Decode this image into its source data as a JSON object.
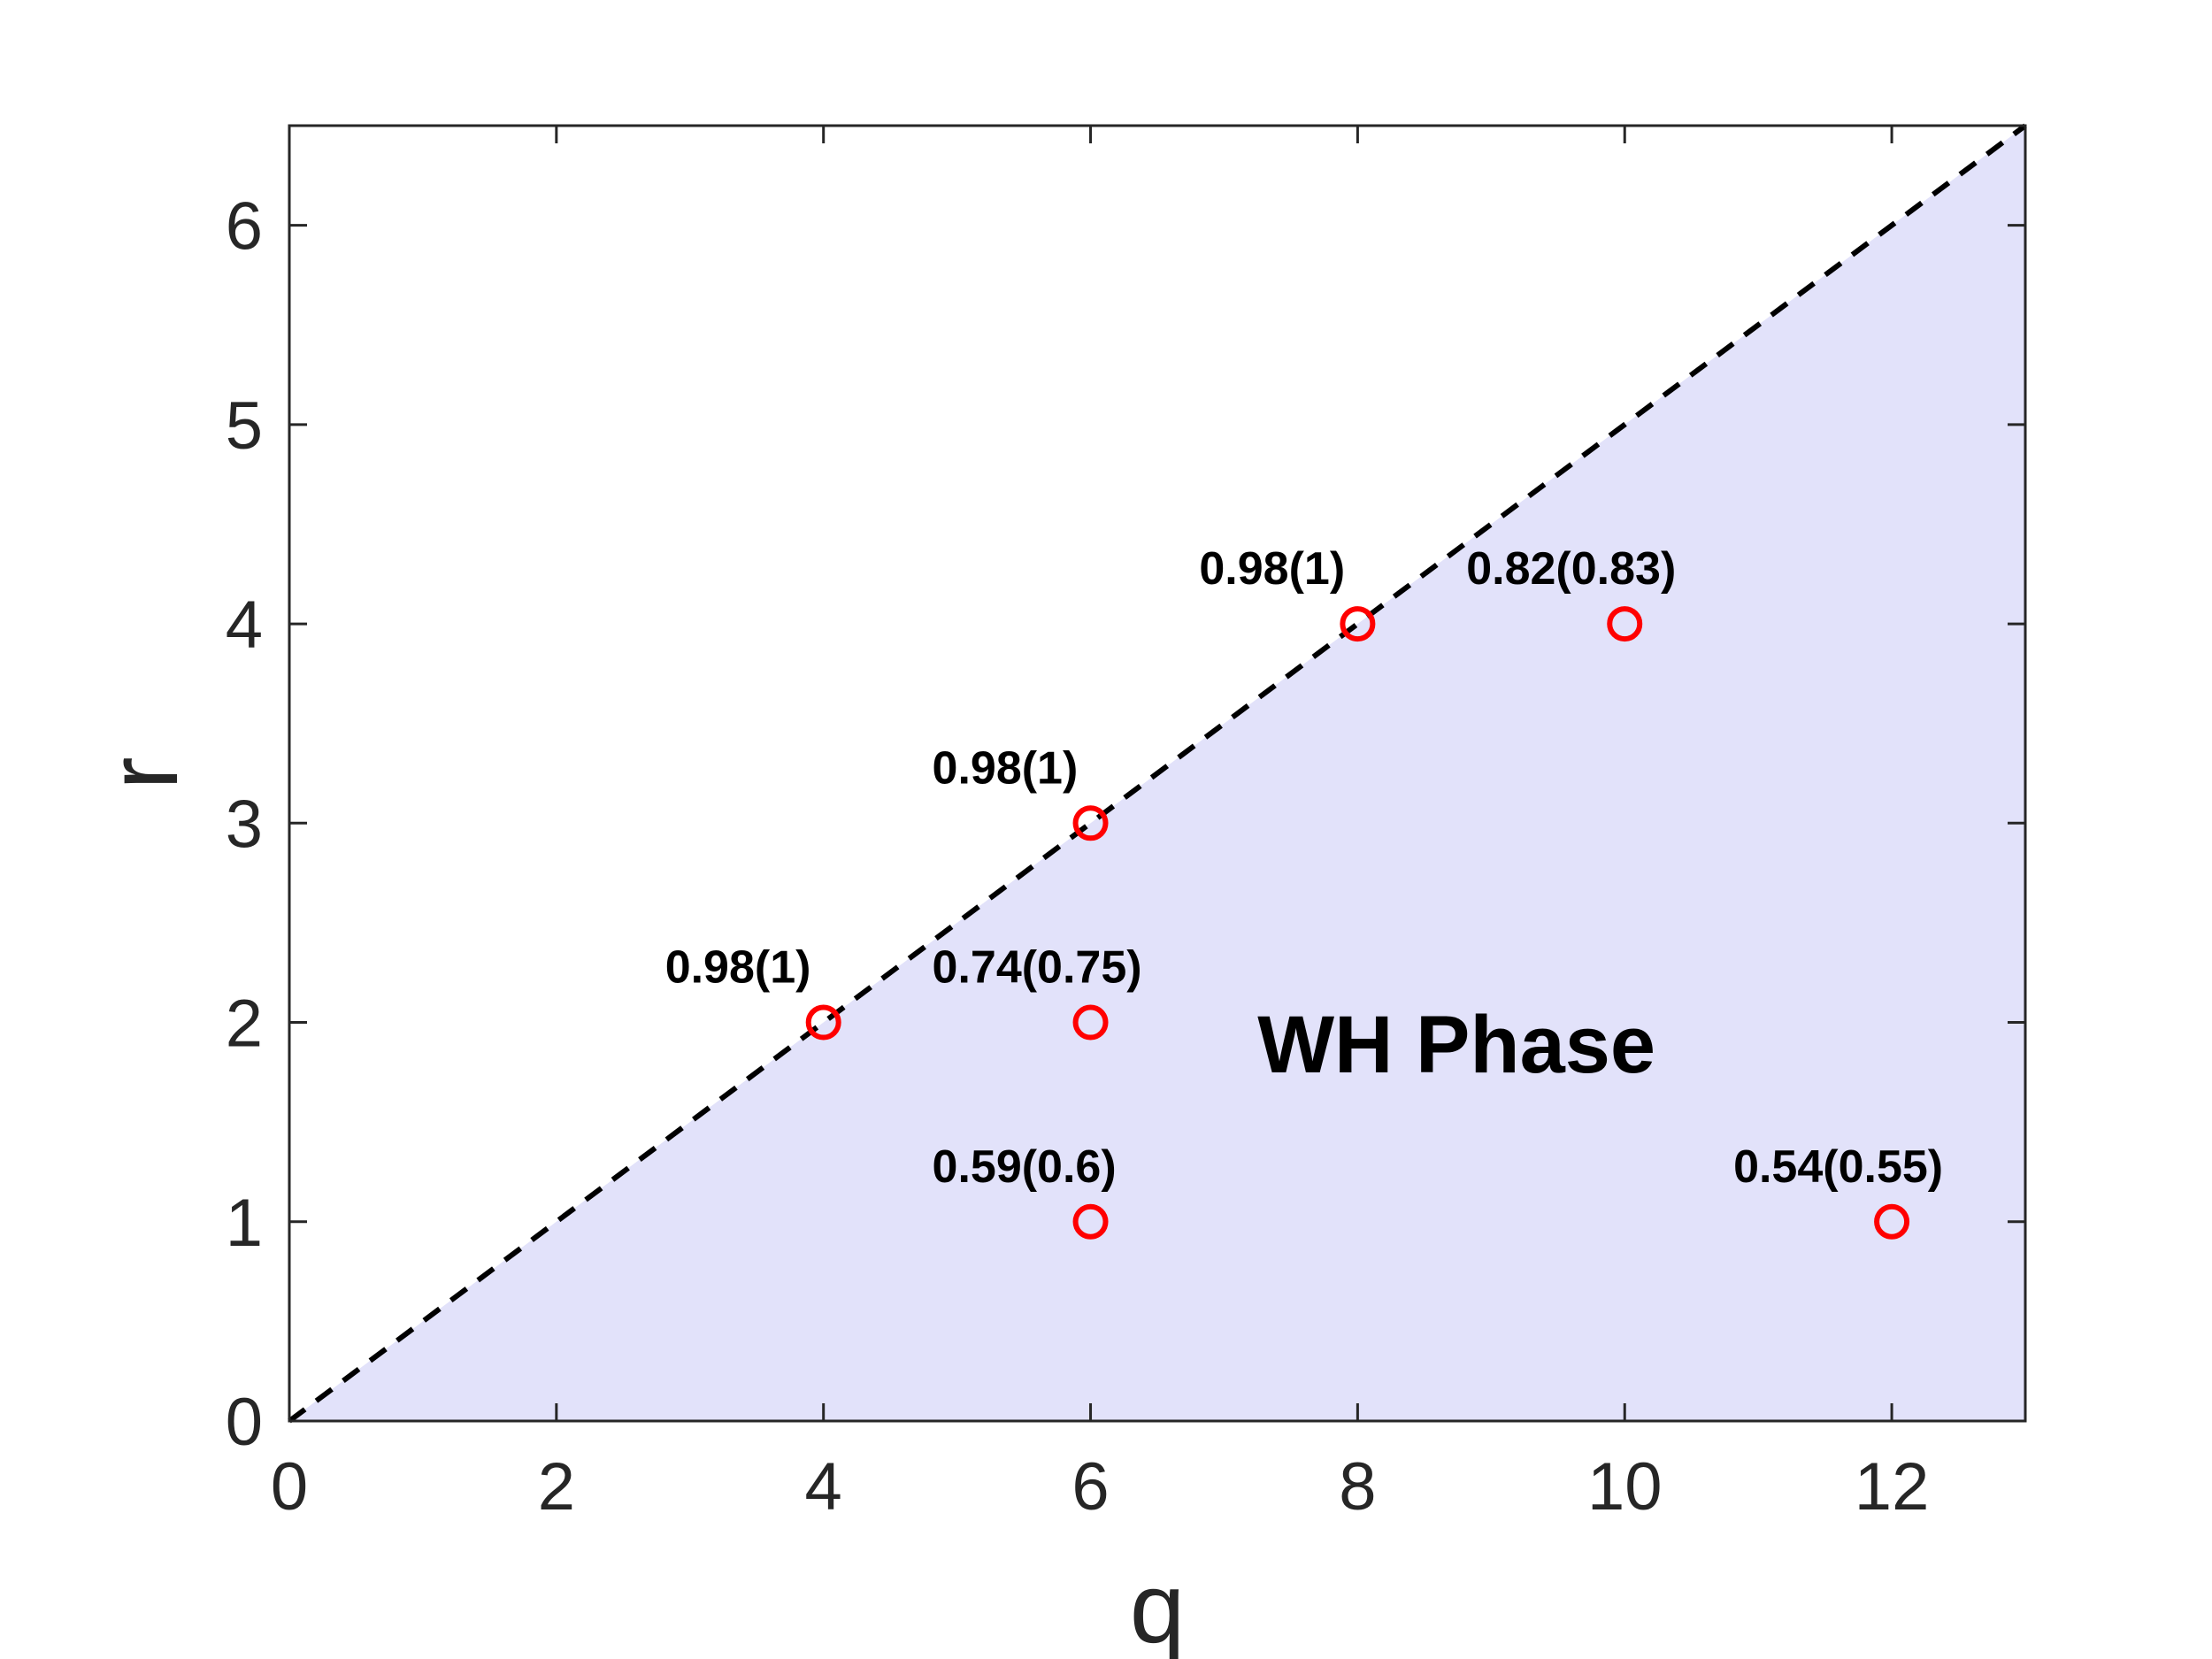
{
  "chart_data": {
    "type": "scatter",
    "title": "",
    "xlabel": "q",
    "ylabel": "r",
    "xlim": [
      0,
      13
    ],
    "ylim": [
      0,
      6.5
    ],
    "xticks": [
      0,
      2,
      4,
      6,
      8,
      10,
      12
    ],
    "yticks": [
      0,
      1,
      2,
      3,
      4,
      5,
      6
    ],
    "xtick_labels": [
      "0",
      "2",
      "4",
      "6",
      "8",
      "10",
      "12"
    ],
    "ytick_labels": [
      "0",
      "1",
      "2",
      "3",
      "4",
      "5",
      "6"
    ],
    "grid": false,
    "reference_line": {
      "type": "dashed",
      "equation": "r = q/2",
      "color": "#000000"
    },
    "shaded_region": {
      "name": "WH Phase",
      "description_label": "WH Phase",
      "color": "#e2e2fa",
      "condition": "r <= q/2"
    },
    "region_label": "WH Phase",
    "marker_color": "#ff0000",
    "points": [
      {
        "x": 4,
        "y": 2,
        "label": "0.98(1)"
      },
      {
        "x": 6,
        "y": 3,
        "label": "0.98(1)"
      },
      {
        "x": 8,
        "y": 4,
        "label": "0.98(1)"
      },
      {
        "x": 10,
        "y": 4,
        "label": "0.82(0.83)"
      },
      {
        "x": 6,
        "y": 2,
        "label": "0.74(0.75)"
      },
      {
        "x": 6,
        "y": 1,
        "label": "0.59(0.6)"
      },
      {
        "x": 12,
        "y": 1,
        "label": "0.54(0.55)"
      }
    ]
  }
}
